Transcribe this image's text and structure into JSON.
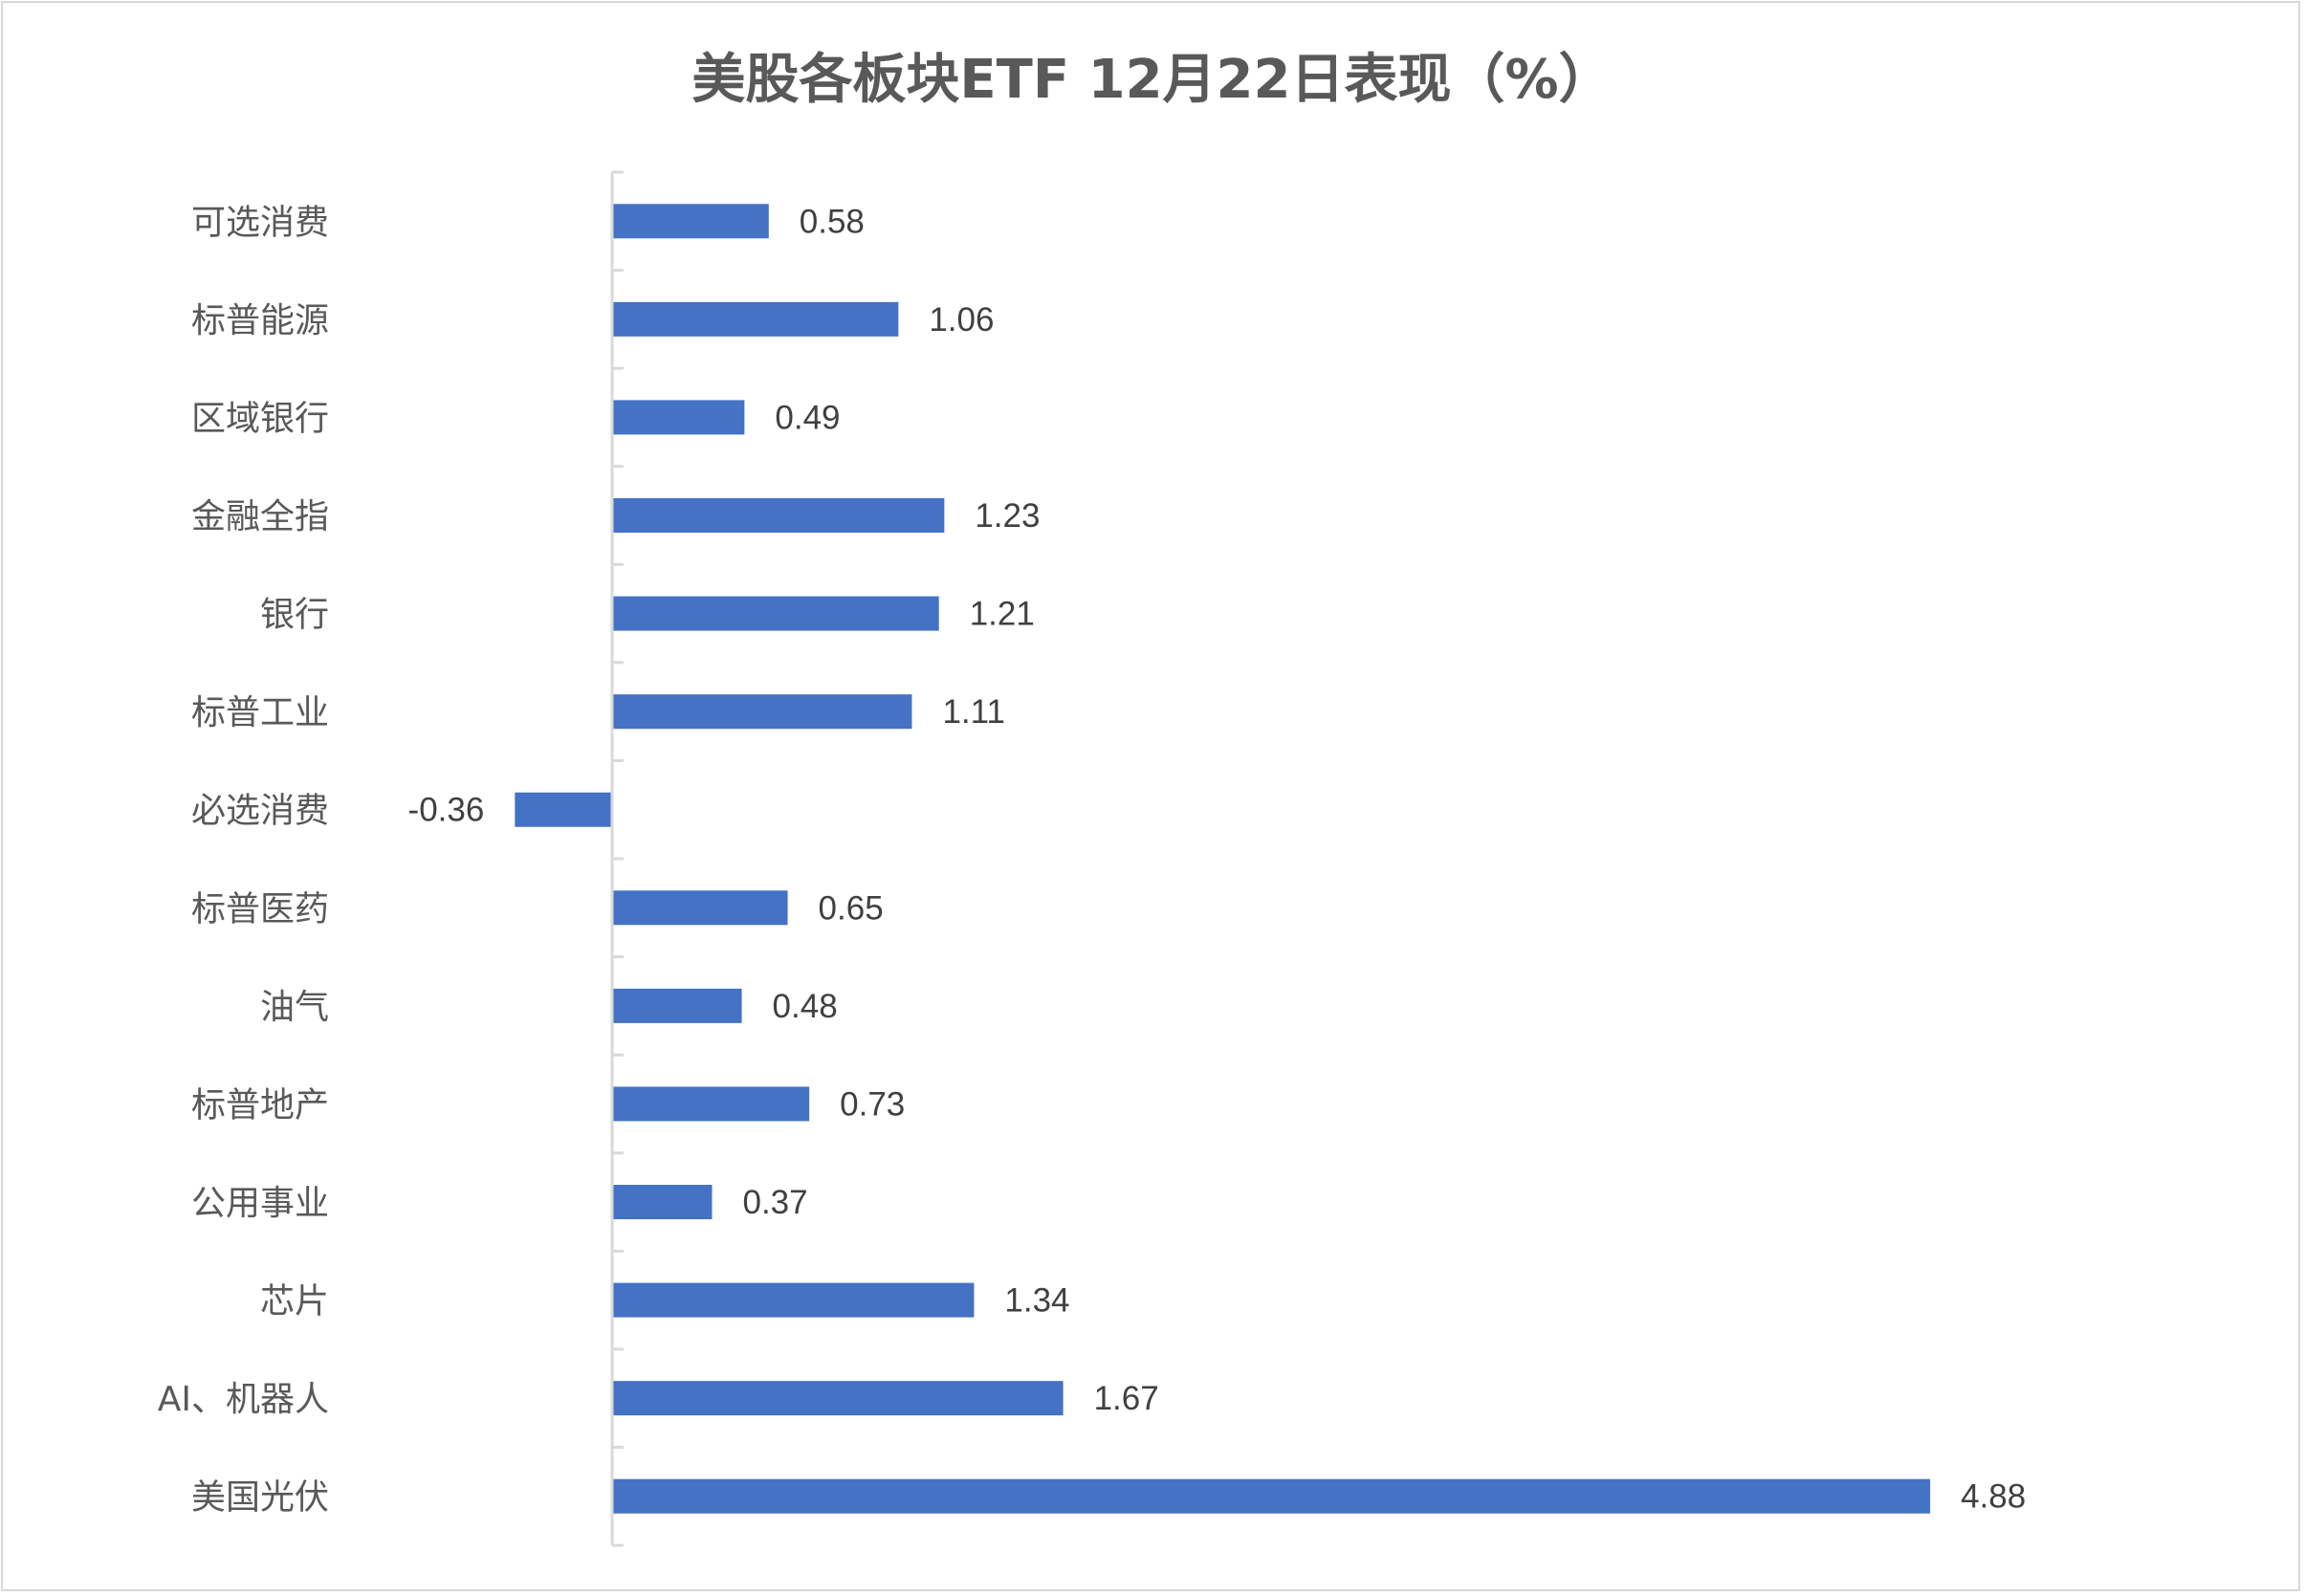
{
  "chart_data": {
    "type": "bar",
    "orientation": "horizontal",
    "title": "美股各板块ETF  12月22日表现（%）",
    "categories": [
      "可选消费",
      "标普能源",
      "区域银行",
      "金融全指",
      "银行",
      "标普工业",
      "必选消费",
      "标普医药",
      "油气",
      "标普地产",
      "公用事业",
      "芯片",
      "AI、机器人",
      "美国光伏"
    ],
    "values": [
      0.58,
      1.06,
      0.49,
      1.23,
      1.21,
      1.11,
      -0.36,
      0.65,
      0.48,
      0.73,
      0.37,
      1.34,
      1.67,
      4.88
    ],
    "value_labels": [
      "0.58",
      "1.06",
      "0.49",
      "1.23",
      "1.21",
      "1.11",
      "-0.36",
      "0.65",
      "0.48",
      "0.73",
      "0.37",
      "1.34",
      "1.67",
      "4.88"
    ],
    "xlabel": "",
    "ylabel": "",
    "grid": false,
    "legend": "none",
    "bar_color": "#4472c4"
  }
}
